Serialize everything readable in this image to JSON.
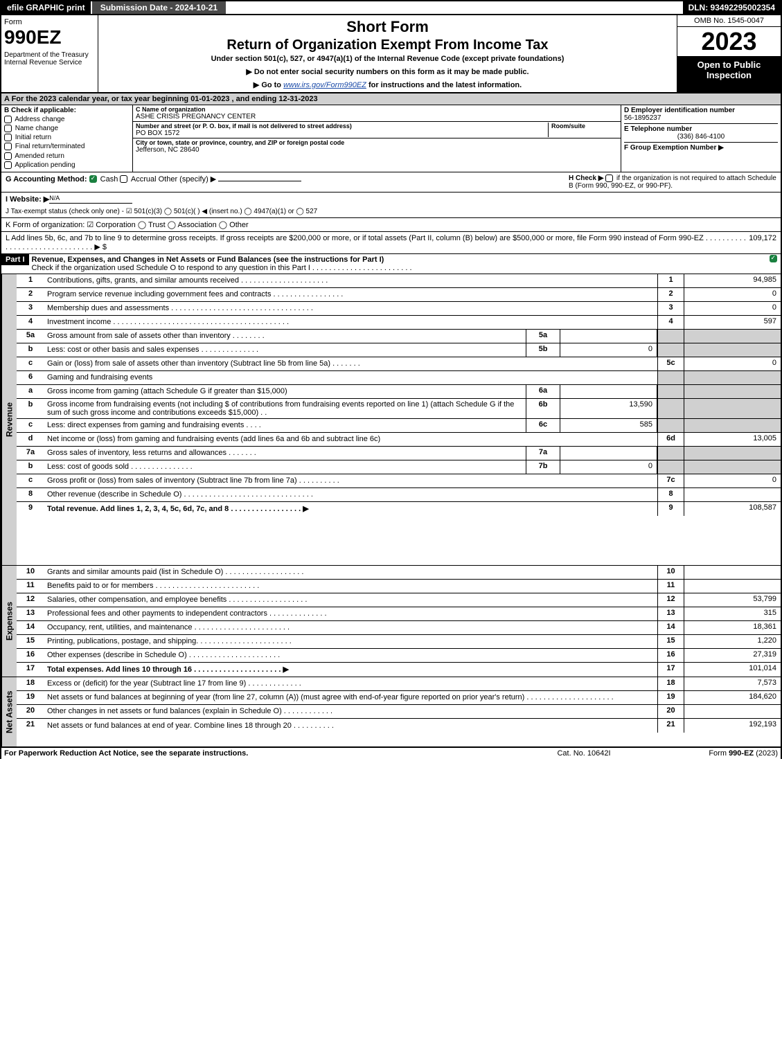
{
  "topbar": {
    "efile": "efile GRAPHIC print",
    "submission": "Submission Date - 2024-10-21",
    "dln": "DLN: 93492295002354"
  },
  "header": {
    "form_label": "Form",
    "form_number": "990EZ",
    "dept": "Department of the Treasury\nInternal Revenue Service",
    "short_form": "Short Form",
    "main_title": "Return of Organization Exempt From Income Tax",
    "subtitle": "Under section 501(c), 527, or 4947(a)(1) of the Internal Revenue Code (except private foundations)",
    "instr1": "▶ Do not enter social security numbers on this form as it may be made public.",
    "instr2_pre": "▶ Go to ",
    "instr2_link": "www.irs.gov/Form990EZ",
    "instr2_post": " for instructions and the latest information.",
    "omb": "OMB No. 1545-0047",
    "year": "2023",
    "open_pub": "Open to Public Inspection"
  },
  "section_a": "A  For the 2023 calendar year, or tax year beginning 01-01-2023 , and ending 12-31-2023",
  "col_b": {
    "header": "B  Check if applicable:",
    "items": [
      "Address change",
      "Name change",
      "Initial return",
      "Final return/terminated",
      "Amended return",
      "Application pending"
    ]
  },
  "col_c": {
    "name_label": "C Name of organization",
    "name": "ASHE CRISIS PREGNANCY CENTER",
    "addr_label": "Number and street (or P. O. box, if mail is not delivered to street address)",
    "addr": "PO BOX 1572",
    "room_label": "Room/suite",
    "city_label": "City or town, state or province, country, and ZIP or foreign postal code",
    "city": "Jefferson, NC  28640"
  },
  "col_d": {
    "ein_label": "D Employer identification number",
    "ein": "56-1895237",
    "tel_label": "E Telephone number",
    "tel": "(336) 846-4100",
    "grp_label": "F Group Exemption Number  ▶"
  },
  "g_row": {
    "label": "G Accounting Method:",
    "cash": "Cash",
    "accrual": "Accrual",
    "other": "Other (specify) ▶",
    "h_label": "H  Check ▶",
    "h_text": "if the organization is not required to attach Schedule B (Form 990, 990-EZ, or 990-PF)."
  },
  "i_row": {
    "label": "I Website: ▶",
    "value": "N/A"
  },
  "j_row": "J Tax-exempt status (check only one) - ☑ 501(c)(3)  ◯ 501(c)(  ) ◀ (insert no.)  ◯ 4947(a)(1) or  ◯ 527",
  "k_row": "K Form of organization:  ☑ Corporation  ◯ Trust  ◯ Association  ◯ Other",
  "l_row": {
    "text": "L Add lines 5b, 6c, and 7b to line 9 to determine gross receipts. If gross receipts are $200,000 or more, or if total assets (Part II, column (B) below) are $500,000 or more, file Form 990 instead of Form 990-EZ . . . . . . . . . . . . . . . . . . . . . . . . . . . . . . . ▶ $",
    "value": "109,172"
  },
  "part1": {
    "label": "Part I",
    "title": "Revenue, Expenses, and Changes in Net Assets or Fund Balances (see the instructions for Part I)",
    "sub": "Check if the organization used Schedule O to respond to any question in this Part I . . . . . . . . . . . . . . . . . . . . . . . ."
  },
  "side_labels": {
    "revenue": "Revenue",
    "expenses": "Expenses",
    "net_assets": "Net Assets"
  },
  "rows": [
    {
      "n": "1",
      "d": "Contributions, gifts, grants, and similar amounts received . . . . . . . . . . . . . . . . . . . . .",
      "c": "1",
      "v": "94,985"
    },
    {
      "n": "2",
      "d": "Program service revenue including government fees and contracts . . . . . . . . . . . . . . . . .",
      "c": "2",
      "v": "0"
    },
    {
      "n": "3",
      "d": "Membership dues and assessments . . . . . . . . . . . . . . . . . . . . . . . . . . . . . . . . . .",
      "c": "3",
      "v": "0"
    },
    {
      "n": "4",
      "d": "Investment income . . . . . . . . . . . . . . . . . . . . . . . . . . . . . . . . . . . . . . . . . .",
      "c": "4",
      "v": "597"
    }
  ],
  "rows5": [
    {
      "n": "5a",
      "d": "Gross amount from sale of assets other than inventory . . . . . . . .",
      "sc": "5a",
      "sv": "",
      "c": "",
      "v": "",
      "grey": true
    },
    {
      "n": "b",
      "d": "Less: cost or other basis and sales expenses . . . . . . . . . . . . . .",
      "sc": "5b",
      "sv": "0",
      "c": "",
      "v": "",
      "grey": true
    },
    {
      "n": "c",
      "d": "Gain or (loss) from sale of assets other than inventory (Subtract line 5b from line 5a) . . . . . . .",
      "c": "5c",
      "v": "0"
    }
  ],
  "row6_header": {
    "n": "6",
    "d": "Gaming and fundraising events"
  },
  "rows6": [
    {
      "n": "a",
      "d": "Gross income from gaming (attach Schedule G if greater than $15,000)",
      "sc": "6a",
      "sv": "",
      "grey": true
    },
    {
      "n": "b",
      "d": "Gross income from fundraising events (not including $                    of contributions from fundraising events reported on line 1) (attach Schedule G if the sum of such gross income and contributions exceeds $15,000)    .   .",
      "sc": "6b",
      "sv": "13,590",
      "grey": true
    },
    {
      "n": "c",
      "d": "Less: direct expenses from gaming and fundraising events   .   .   .   .",
      "sc": "6c",
      "sv": "585",
      "grey": true
    },
    {
      "n": "d",
      "d": "Net income or (loss) from gaming and fundraising events (add lines 6a and 6b and subtract line 6c)",
      "c": "6d",
      "v": "13,005"
    }
  ],
  "rows7": [
    {
      "n": "7a",
      "d": "Gross sales of inventory, less returns and allowances . . . . . . .",
      "sc": "7a",
      "sv": "",
      "grey": true
    },
    {
      "n": "b",
      "d": "Less: cost of goods sold       .   .   .   .   .   .   .   .   .   .   .   .   .   .   .",
      "sc": "7b",
      "sv": "0",
      "grey": true
    },
    {
      "n": "c",
      "d": "Gross profit or (loss) from sales of inventory (Subtract line 7b from line 7a) . . . . . . . . . .",
      "c": "7c",
      "v": "0"
    }
  ],
  "rows89": [
    {
      "n": "8",
      "d": "Other revenue (describe in Schedule O) . . . . . . . . . . . . . . . . . . . . . . . . . . . . . . .",
      "c": "8",
      "v": ""
    },
    {
      "n": "9",
      "d": "Total revenue. Add lines 1, 2, 3, 4, 5c, 6d, 7c, and 8   .   .   .   .   .   .   .   .   .   .   .   .   .   .   .   .   .   ▶",
      "c": "9",
      "v": "108,587",
      "bold": true
    }
  ],
  "exp_rows": [
    {
      "n": "10",
      "d": "Grants and similar amounts paid (list in Schedule O) .   .   .   .   .   .   .   .   .   .   .   .   .   .   .   .   .   .   .",
      "c": "10",
      "v": ""
    },
    {
      "n": "11",
      "d": "Benefits paid to or for members     .   .   .   .   .   .   .   .   .   .   .   .   .   .   .   .   .   .   .   .   .   .   .   .   .",
      "c": "11",
      "v": ""
    },
    {
      "n": "12",
      "d": "Salaries, other compensation, and employee benefits .   .   .   .   .   .   .   .   .   .   .   .   .   .   .   .   .   .   .",
      "c": "12",
      "v": "53,799"
    },
    {
      "n": "13",
      "d": "Professional fees and other payments to independent contractors .   .   .   .   .   .   .   .   .   .   .   .   .   .",
      "c": "13",
      "v": "315"
    },
    {
      "n": "14",
      "d": "Occupancy, rent, utilities, and maintenance .   .   .   .   .   .   .   .   .   .   .   .   .   .   .   .   .   .   .   .   .   .   .",
      "c": "14",
      "v": "18,361"
    },
    {
      "n": "15",
      "d": "Printing, publications, postage, and shipping.   .   .   .   .   .   .   .   .   .   .   .   .   .   .   .   .   .   .   .   .   .   .",
      "c": "15",
      "v": "1,220"
    },
    {
      "n": "16",
      "d": "Other expenses (describe in Schedule O)     .   .   .   .   .   .   .   .   .   .   .   .   .   .   .   .   .   .   .   .   .   .",
      "c": "16",
      "v": "27,319"
    },
    {
      "n": "17",
      "d": "Total expenses. Add lines 10 through 16     .   .   .   .   .   .   .   .   .   .   .   .   .   .   .   .   .   .   .   .   .   ▶",
      "c": "17",
      "v": "101,014",
      "bold": true
    }
  ],
  "net_rows": [
    {
      "n": "18",
      "d": "Excess or (deficit) for the year (Subtract line 17 from line 9)       .   .   .   .   .   .   .   .   .   .   .   .   .",
      "c": "18",
      "v": "7,573"
    },
    {
      "n": "19",
      "d": "Net assets or fund balances at beginning of year (from line 27, column (A)) (must agree with end-of-year figure reported on prior year's return) .   .   .   .   .   .   .   .   .   .   .   .   .   .   .   .   .   .   .   .   .",
      "c": "19",
      "v": "184,620"
    },
    {
      "n": "20",
      "d": "Other changes in net assets or fund balances (explain in Schedule O) .   .   .   .   .   .   .   .   .   .   .   .",
      "c": "20",
      "v": ""
    },
    {
      "n": "21",
      "d": "Net assets or fund balances at end of year. Combine lines 18 through 20 .   .   .   .   .   .   .   .   .   .",
      "c": "21",
      "v": "192,193"
    }
  ],
  "footer": {
    "left": "For Paperwork Reduction Act Notice, see the separate instructions.",
    "mid": "Cat. No. 10642I",
    "right_pre": "Form ",
    "right_bold": "990-EZ",
    "right_post": " (2023)"
  },
  "colors": {
    "header_bg": "#000000",
    "grey": "#d0d0d0",
    "green_check": "#1a8040",
    "link": "#1a4aa8"
  }
}
